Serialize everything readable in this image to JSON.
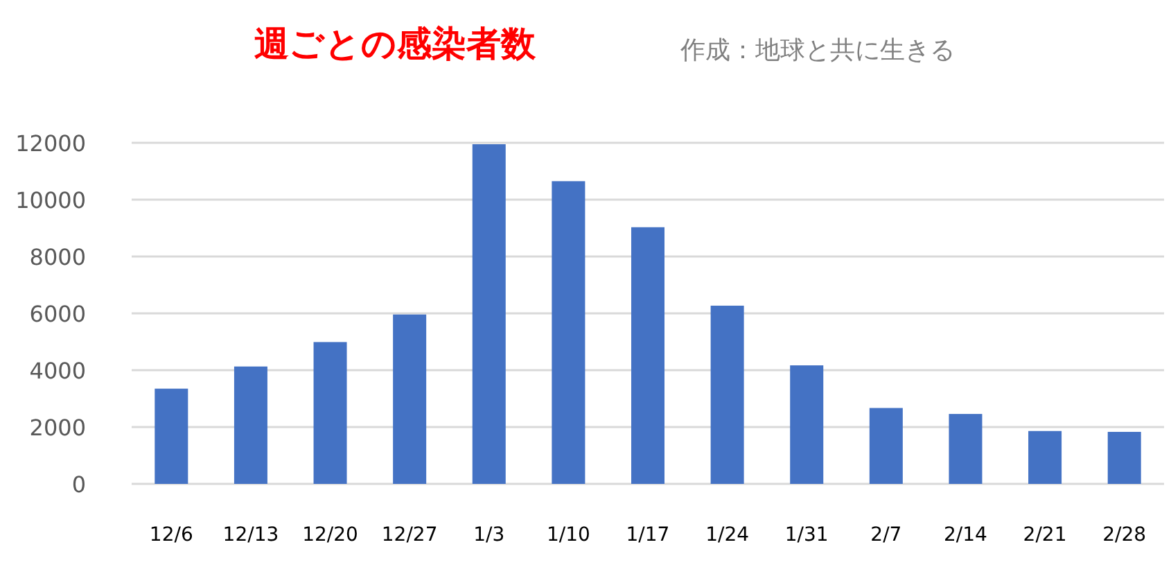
{
  "chart_data": {
    "type": "bar",
    "title": "週ごとの感染者数",
    "subtitle": "作成：地球と共に生きる",
    "categories": [
      "12/6",
      "12/13",
      "12/20",
      "12/27",
      "1/3",
      "1/10",
      "1/17",
      "1/24",
      "1/31",
      "2/7",
      "2/14",
      "2/21",
      "2/28"
    ],
    "values": [
      3350,
      4130,
      4990,
      5960,
      11950,
      10650,
      9030,
      6270,
      4170,
      2670,
      2460,
      1860,
      1830
    ],
    "color": "#4472c4",
    "ylim": [
      0,
      12000
    ],
    "yticks": [
      0,
      2000,
      4000,
      6000,
      8000,
      10000,
      12000
    ],
    "grid": "y"
  }
}
